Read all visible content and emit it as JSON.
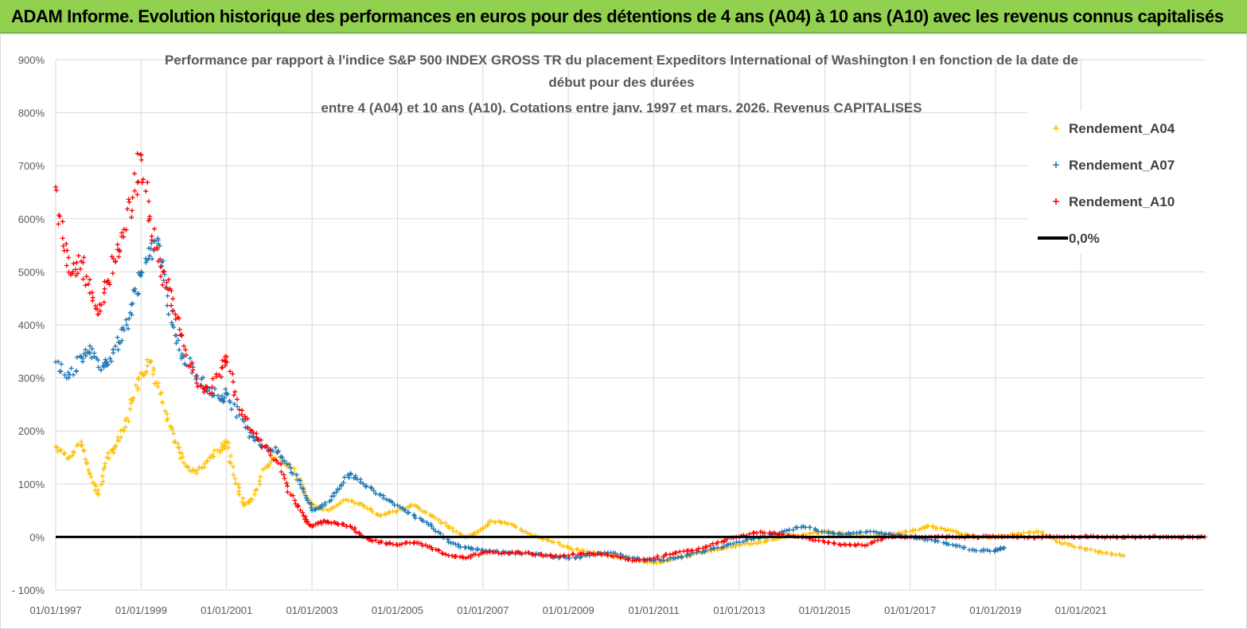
{
  "banner": {
    "text": "ADAM Informe. Evolution historique des performances en euros pour des détentions de 4 ans (A04) à 10 ans (A10) avec les revenus connus capitalisés"
  },
  "chart_data": {
    "type": "scatter",
    "title_lines": [
      "Performance par rapport à l'indice S&P 500 INDEX GROSS TR  du placement Expeditors International of Washington I en fonction de la date de",
      "début pour des durées",
      "entre 4 (A04) et 10 ans (A10). Cotations entre janv. 1997 et mars. 2026. Revenus CAPITALISES"
    ],
    "xlabel": "",
    "ylabel": "",
    "x_range": [
      1997.0,
      2023.9
    ],
    "ylim": [
      -100,
      900
    ],
    "y_ticks": [
      -100,
      0,
      100,
      200,
      300,
      400,
      500,
      600,
      700,
      800,
      900
    ],
    "y_tick_labels": [
      "- 100%",
      "0%",
      "100%",
      "200%",
      "300%",
      "400%",
      "500%",
      "600%",
      "700%",
      "800%",
      "900%"
    ],
    "x_tick_labels": [
      "01/01/1997",
      "01/01/1999",
      "01/01/2001",
      "01/01/2003",
      "01/01/2005",
      "01/01/2007",
      "01/01/2009",
      "01/01/2011",
      "01/01/2013",
      "01/01/2015",
      "01/01/2017",
      "01/01/2019",
      "01/01/2021"
    ],
    "x_tick_years": [
      1997,
      1999,
      2001,
      2003,
      2005,
      2007,
      2009,
      2011,
      2013,
      2015,
      2017,
      2019,
      2021
    ],
    "grid": true,
    "legend_position": "top-right",
    "series": [
      {
        "name": "Rendement_A04",
        "color": "#ffc000",
        "marker": "plus",
        "x": [
          1997.0,
          1997.3,
          1997.6,
          1997.8,
          1998.0,
          1998.2,
          1998.4,
          1998.6,
          1998.8,
          1999.0,
          1999.2,
          1999.4,
          1999.6,
          1999.8,
          2000.0,
          2000.3,
          2000.6,
          2000.9,
          2001.0,
          2001.2,
          2001.4,
          2001.6,
          2001.9,
          2002.2,
          2002.6,
          2003.0,
          2003.4,
          2003.8,
          2004.2,
          2004.6,
          2005.0,
          2005.4,
          2005.8,
          2006.2,
          2006.6,
          2006.9,
          2007.2,
          2007.6,
          2008.0,
          2008.5,
          2009.0,
          2009.5,
          2010.0,
          2010.5,
          2011.0,
          2011.5,
          2012.0,
          2012.5,
          2013.0,
          2013.5,
          2014.0,
          2014.5,
          2015.0,
          2015.5,
          2016.0,
          2016.5,
          2017.0,
          2017.4,
          2017.8,
          2018.2,
          2018.6,
          2019.0,
          2019.5,
          2020.0,
          2020.5,
          2021.0,
          2021.5,
          2022.0
        ],
        "y": [
          170,
          150,
          180,
          120,
          80,
          150,
          170,
          200,
          260,
          310,
          330,
          290,
          220,
          180,
          140,
          120,
          150,
          170,
          180,
          110,
          60,
          70,
          130,
          160,
          120,
          60,
          50,
          70,
          60,
          40,
          50,
          60,
          40,
          20,
          0,
          10,
          30,
          25,
          10,
          -5,
          -20,
          -30,
          -35,
          -40,
          -50,
          -40,
          -30,
          -25,
          -15,
          -10,
          0,
          5,
          10,
          5,
          0,
          5,
          10,
          20,
          15,
          5,
          0,
          0,
          5,
          10,
          -10,
          -20,
          -30,
          -35
        ]
      },
      {
        "name": "Rendement_A07",
        "color": "#1f77b4",
        "marker": "plus",
        "x": [
          1997.0,
          1997.3,
          1997.6,
          1997.8,
          1998.0,
          1998.2,
          1998.4,
          1998.6,
          1998.8,
          1999.0,
          1999.2,
          1999.4,
          1999.6,
          1999.8,
          2000.0,
          2000.3,
          2000.6,
          2000.9,
          2001.0,
          2001.3,
          2001.6,
          2001.9,
          2002.2,
          2002.5,
          2002.8,
          2003.0,
          2003.3,
          2003.6,
          2003.9,
          2004.2,
          2004.6,
          2005.0,
          2005.4,
          2005.8,
          2006.2,
          2006.6,
          2007.0,
          2007.5,
          2008.0,
          2008.5,
          2009.0,
          2009.5,
          2010.0,
          2010.5,
          2011.0,
          2011.5,
          2012.0,
          2012.5,
          2013.0,
          2013.5,
          2014.0,
          2014.5,
          2015.0,
          2015.5,
          2016.0,
          2016.5,
          2017.0,
          2017.5,
          2018.0,
          2018.5,
          2019.0,
          2019.2
        ],
        "y": [
          330,
          300,
          340,
          360,
          320,
          330,
          360,
          390,
          440,
          500,
          530,
          560,
          470,
          380,
          340,
          300,
          280,
          260,
          270,
          230,
          190,
          170,
          160,
          130,
          90,
          50,
          60,
          90,
          120,
          100,
          80,
          60,
          40,
          20,
          -10,
          -20,
          -25,
          -30,
          -30,
          -35,
          -40,
          -35,
          -30,
          -40,
          -45,
          -40,
          -30,
          -20,
          -10,
          0,
          10,
          20,
          10,
          5,
          10,
          5,
          0,
          -5,
          -15,
          -25,
          -25,
          -20
        ]
      },
      {
        "name": "Rendement_A10",
        "color": "#ff0000",
        "marker": "plus",
        "x": [
          1997.0,
          1997.2,
          1997.4,
          1997.6,
          1997.8,
          1998.0,
          1998.2,
          1998.4,
          1998.6,
          1998.8,
          1999.0,
          1999.2,
          1999.4,
          1999.6,
          1999.8,
          2000.0,
          2000.3,
          2000.6,
          2000.9,
          2001.0,
          2001.3,
          2001.6,
          2001.9,
          2002.2,
          2002.5,
          2002.8,
          2003.0,
          2003.3,
          2003.6,
          2003.9,
          2004.2,
          2004.6,
          2005.0,
          2005.4,
          2005.8,
          2006.2,
          2006.6,
          2007.0,
          2007.5,
          2008.0,
          2008.5,
          2009.0,
          2009.5,
          2010.0,
          2010.5,
          2011.0,
          2011.5,
          2012.0,
          2012.5,
          2013.0,
          2013.5,
          2014.0,
          2014.5,
          2015.0,
          2015.5,
          2016.0,
          2016.5,
          2017.0,
          2017.5,
          2018.0,
          2018.5,
          2019.0,
          2019.5,
          2020.0,
          2020.5,
          2021.0,
          2021.5,
          2022.0,
          2022.5,
          2023.0,
          2023.5,
          2023.9
        ],
        "y": [
          660,
          540,
          500,
          520,
          460,
          420,
          480,
          520,
          580,
          640,
          720,
          600,
          520,
          480,
          420,
          360,
          290,
          270,
          320,
          340,
          240,
          200,
          170,
          140,
          80,
          40,
          20,
          30,
          25,
          20,
          0,
          -10,
          -15,
          -10,
          -20,
          -35,
          -40,
          -30,
          -30,
          -30,
          -35,
          -35,
          -30,
          -35,
          -45,
          -40,
          -30,
          -25,
          -10,
          0,
          10,
          5,
          0,
          -10,
          -15,
          -15,
          0,
          0,
          0,
          0,
          0,
          0,
          0,
          0,
          0,
          0,
          0,
          0,
          0,
          0,
          0,
          0
        ]
      }
    ],
    "reference_line": {
      "name": "0,0%",
      "value": 0,
      "color": "#000000"
    }
  }
}
